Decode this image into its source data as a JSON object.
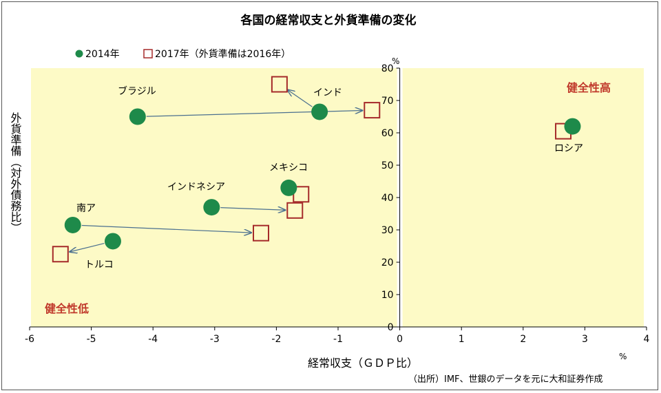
{
  "chart_data": {
    "type": "scatter",
    "title": "各国の経常収支と外貨準備の変化",
    "xlabel": "経常収支（ＧＤＰ比）",
    "ylabel": "外貨準備（対外債務比）",
    "x_unit": "%",
    "y_unit": "%",
    "xlim": [
      -6,
      4
    ],
    "ylim": [
      0,
      80
    ],
    "x_ticks": [
      "-6",
      "-5",
      "-4",
      "-3",
      "-2",
      "-1",
      "0",
      "1",
      "2",
      "3",
      "4"
    ],
    "y_ticks": [
      "0",
      "10",
      "20",
      "30",
      "40",
      "50",
      "60",
      "70",
      "80"
    ],
    "grid": false,
    "legend_position": "top-left",
    "series": [
      {
        "name": "2014年",
        "marker": "filled-circle",
        "color": "#1e8a4a"
      },
      {
        "name": "2017年（外貨準備は2016年）",
        "marker": "hollow-square",
        "color": "#a52a2a"
      }
    ],
    "countries": [
      {
        "label": "ブラジル",
        "x2014": -4.25,
        "y2014": 65,
        "x2017": -0.45,
        "y2017": 67
      },
      {
        "label": "インド",
        "x2014": -1.3,
        "y2014": 66.5,
        "x2017": -1.95,
        "y2017": 75
      },
      {
        "label": "ロシア",
        "x2014": 2.8,
        "y2014": 62,
        "x2017": 2.65,
        "y2017": 60.5
      },
      {
        "label": "メキシコ",
        "x2014": -1.8,
        "y2014": 43,
        "x2017": -1.6,
        "y2017": 41
      },
      {
        "label": "インドネシア",
        "x2014": -3.05,
        "y2014": 37,
        "x2017": -1.7,
        "y2017": 36
      },
      {
        "label": "南ア",
        "x2014": -5.3,
        "y2014": 31.5,
        "x2017": -2.25,
        "y2017": 29
      },
      {
        "label": "トルコ",
        "x2014": -4.65,
        "y2014": 26.5,
        "x2017": -5.5,
        "y2017": 22.5
      }
    ],
    "annotations": {
      "high": "健全性高",
      "low": "健全性低"
    },
    "source": "（出所）IMF、世銀のデータを元に大和証券作成",
    "colors": {
      "shade": "#fdfac6",
      "circle": "#1e8a4a",
      "square": "#a52a2a",
      "arrow": "#4a6f8f",
      "quadrant_text": "#c0392b"
    }
  }
}
